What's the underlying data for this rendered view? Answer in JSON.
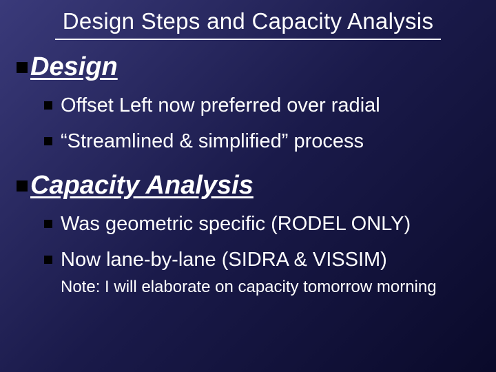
{
  "title": "Design Steps and Capacity Analysis",
  "sections": [
    {
      "heading": "Design",
      "items": [
        "Offset Left now preferred over radial",
        "“Streamlined & simplified” process"
      ]
    },
    {
      "heading": "Capacity Analysis",
      "items": [
        "Was geometric specific (RODEL ONLY)",
        "Now lane-by-lane (SIDRA & VISSIM)"
      ],
      "note": "Note: I will elaborate on capacity tomorrow morning"
    }
  ],
  "style": {
    "background_gradient": [
      "#3a3a7a",
      "#1a1a4a",
      "#0a0a2a"
    ],
    "text_color": "#ffffff",
    "bullet_color": "#000000",
    "title_fontsize": 33,
    "section_head_fontsize": 38,
    "sub_item_fontsize": 29,
    "note_fontsize": 24,
    "title_underline_width": 560,
    "font_family": "Arial"
  }
}
